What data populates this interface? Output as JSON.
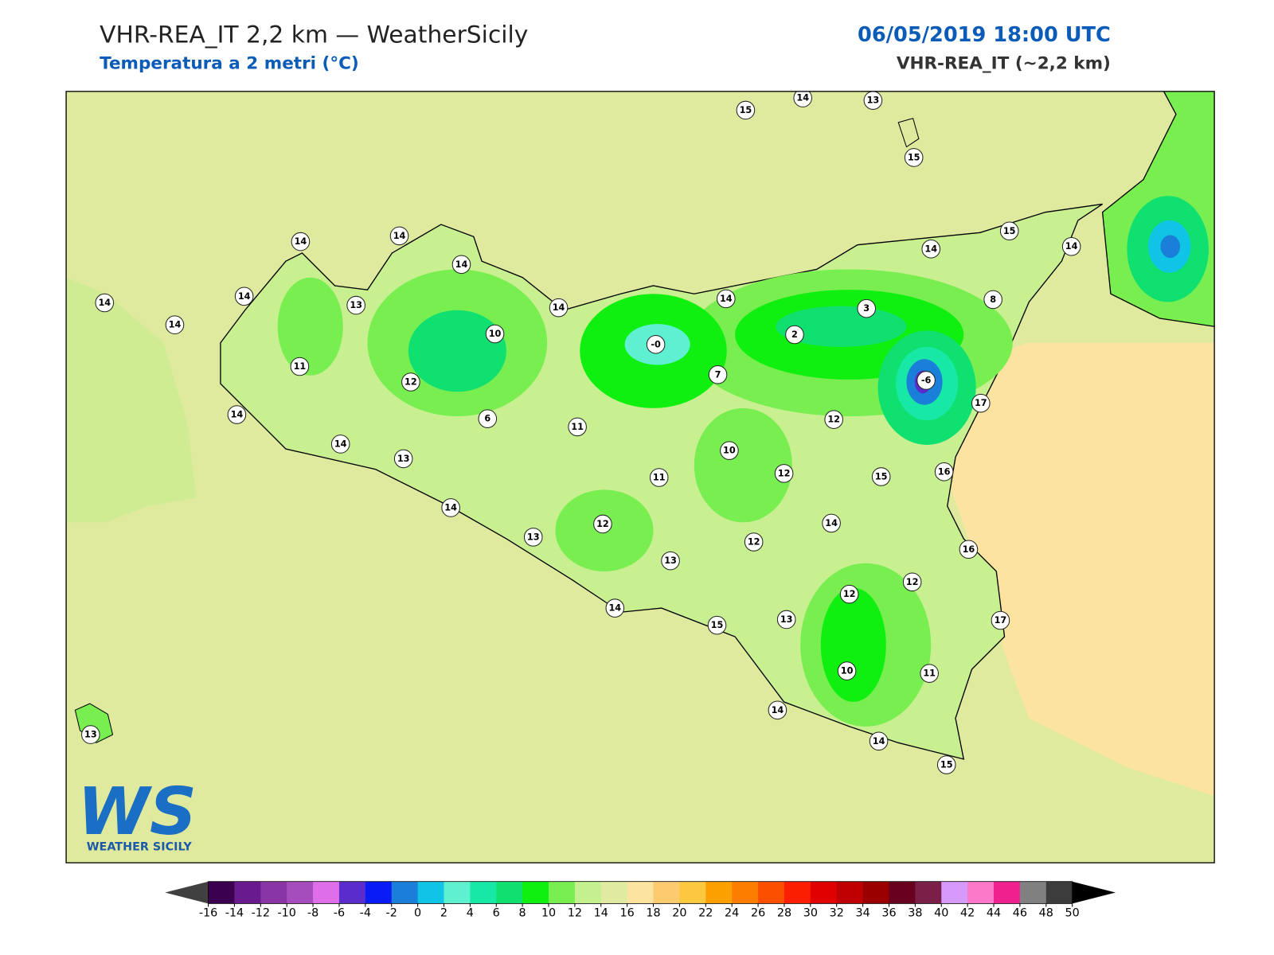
{
  "header": {
    "title": "VHR-REA_IT 2,2 km — WeatherSicily",
    "subtitle": "Temperatura a 2 metri (°C)",
    "datetime": "06/05/2019 18:00 UTC",
    "model": "VHR-REA_IT (~2,2 km)"
  },
  "map": {
    "stations": [
      "15",
      "14",
      "13",
      "15",
      "14",
      "14",
      "14",
      "15",
      "14",
      "14",
      "14",
      "14",
      "13",
      "14",
      "14",
      "14",
      "8",
      "3",
      "10",
      "2",
      "-0",
      "11",
      "7",
      "12",
      "-6",
      "17",
      "14",
      "6",
      "11",
      "12",
      "14",
      "10",
      "13",
      "12",
      "15",
      "16",
      "11",
      "14",
      "14",
      "12",
      "12",
      "13",
      "16",
      "13",
      "12",
      "12",
      "14",
      "13",
      "15",
      "17",
      "10",
      "11",
      "14",
      "13",
      "14",
      "15"
    ]
  },
  "logo": {
    "mark": "WS",
    "text": "WEATHER SICILY"
  },
  "colorbar": {
    "ticks": [
      -16,
      -14,
      -12,
      -10,
      -8,
      -6,
      -4,
      -2,
      0,
      2,
      4,
      6,
      8,
      10,
      12,
      14,
      16,
      18,
      20,
      22,
      24,
      26,
      28,
      30,
      32,
      34,
      36,
      38,
      40,
      42,
      44,
      46,
      48,
      50
    ],
    "colors": [
      "#3b0050",
      "#6a1a8f",
      "#8a35a6",
      "#a64dbe",
      "#de6fe8",
      "#5a2ccc",
      "#0a1cf5",
      "#1a7fd8",
      "#10c4e6",
      "#5ef0d0",
      "#18e8a5",
      "#10e070",
      "#10f010",
      "#78ee50",
      "#c4f090",
      "#e0eaa0",
      "#fde3a0",
      "#fccb70",
      "#fcc840",
      "#fca000",
      "#fc7d00",
      "#fc5000",
      "#fc1e00",
      "#e00000",
      "#c00000",
      "#9a0000",
      "#6a0020",
      "#7a2048",
      "#d69afc",
      "#fc78c8",
      "#f0208f",
      "#808080",
      "#3c3c3c"
    ],
    "under_color": "#404040",
    "over_color": "#000000"
  }
}
